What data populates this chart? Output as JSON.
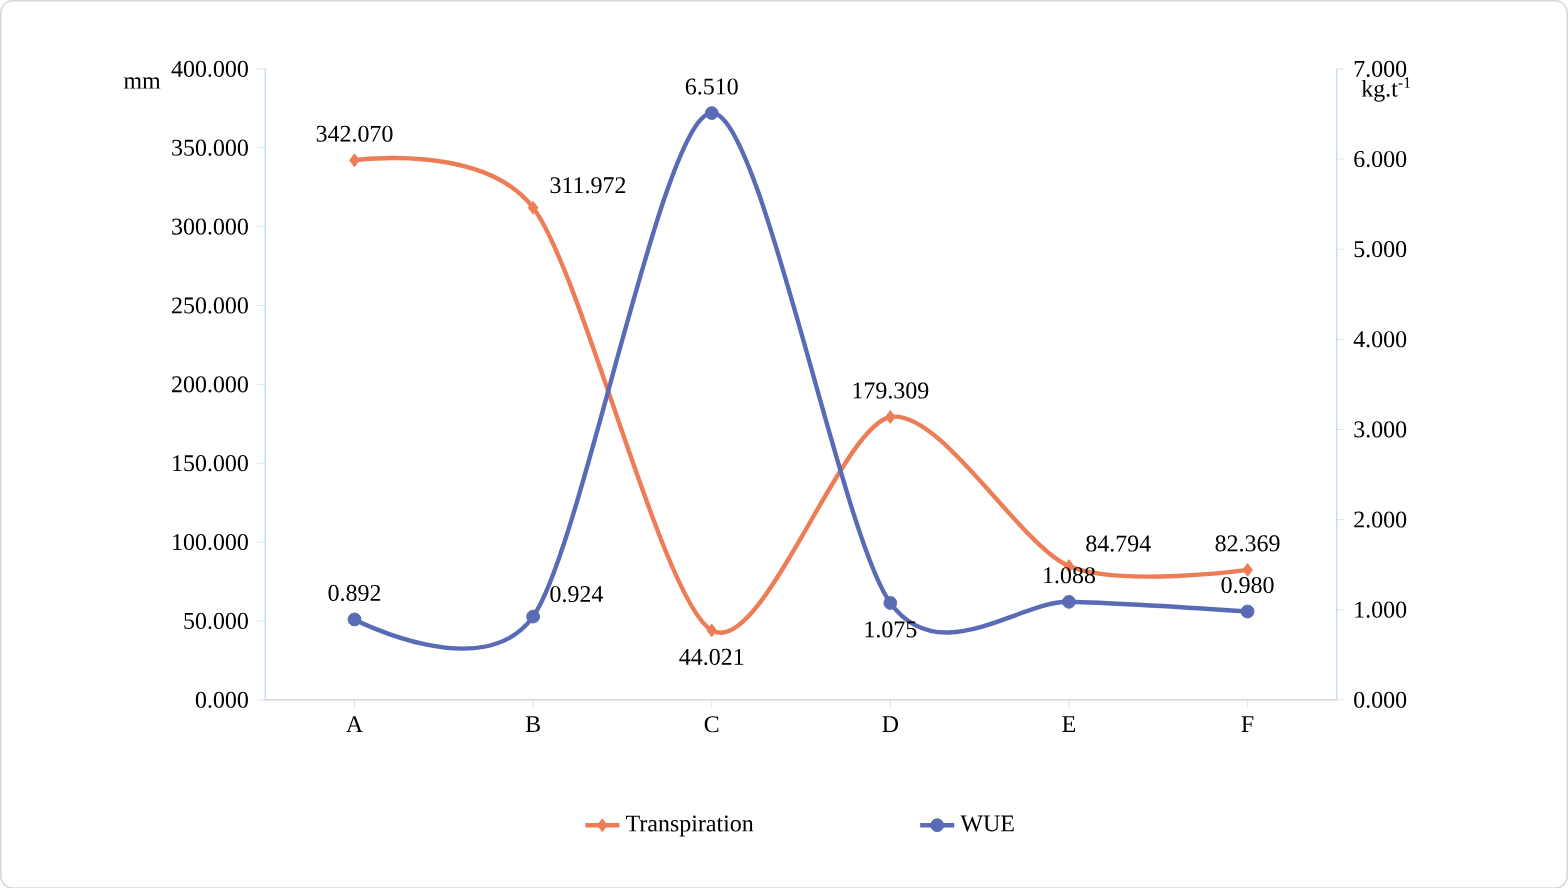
{
  "chart_data": {
    "type": "line",
    "categories": [
      "A",
      "B",
      "C",
      "D",
      "E",
      "F"
    ],
    "series": [
      {
        "name": "Transpiration",
        "color": "#ed7d57",
        "marker": "diamond",
        "values": [
          342.07,
          311.972,
          44.021,
          179.309,
          84.794,
          82.369
        ],
        "value_labels": [
          "342.070",
          "311.972",
          "44.021",
          "179.309",
          "84.794",
          "82.369"
        ]
      },
      {
        "name": "WUE",
        "color": "#5a6bb5",
        "marker": "circle",
        "axis": "y2",
        "values": [
          0.892,
          0.924,
          6.51,
          1.075,
          1.088,
          0.98
        ],
        "value_labels": [
          "0.892",
          "0.924",
          "6.510",
          "1.075",
          "1.088",
          "0.980"
        ]
      }
    ],
    "ylabel": "mm",
    "y2label": "kg.t$^{-1}$",
    "ylim": [
      0,
      400
    ],
    "yticks": [
      {
        "value": 0,
        "label": "0.000"
      },
      {
        "value": 50,
        "label": "50.000"
      },
      {
        "value": 100,
        "label": "100.000"
      },
      {
        "value": 150,
        "label": "150.000"
      },
      {
        "value": 200,
        "label": "200.000"
      },
      {
        "value": 250,
        "label": "250.000"
      },
      {
        "value": 300,
        "label": "300.000"
      },
      {
        "value": 350,
        "label": "350.000"
      },
      {
        "value": 400,
        "label": "400.000"
      }
    ],
    "y2lim": [
      0,
      7
    ],
    "y2ticks": [
      {
        "value": 0,
        "label": "0.000"
      },
      {
        "value": 1,
        "label": "1.000"
      },
      {
        "value": 2,
        "label": "2.000"
      },
      {
        "value": 3,
        "label": "3.000"
      },
      {
        "value": 4,
        "label": "4.000"
      },
      {
        "value": 5,
        "label": "5.000"
      },
      {
        "value": 6,
        "label": "6.000"
      },
      {
        "value": 7,
        "label": "7.000"
      }
    ],
    "legend": "bottom"
  }
}
